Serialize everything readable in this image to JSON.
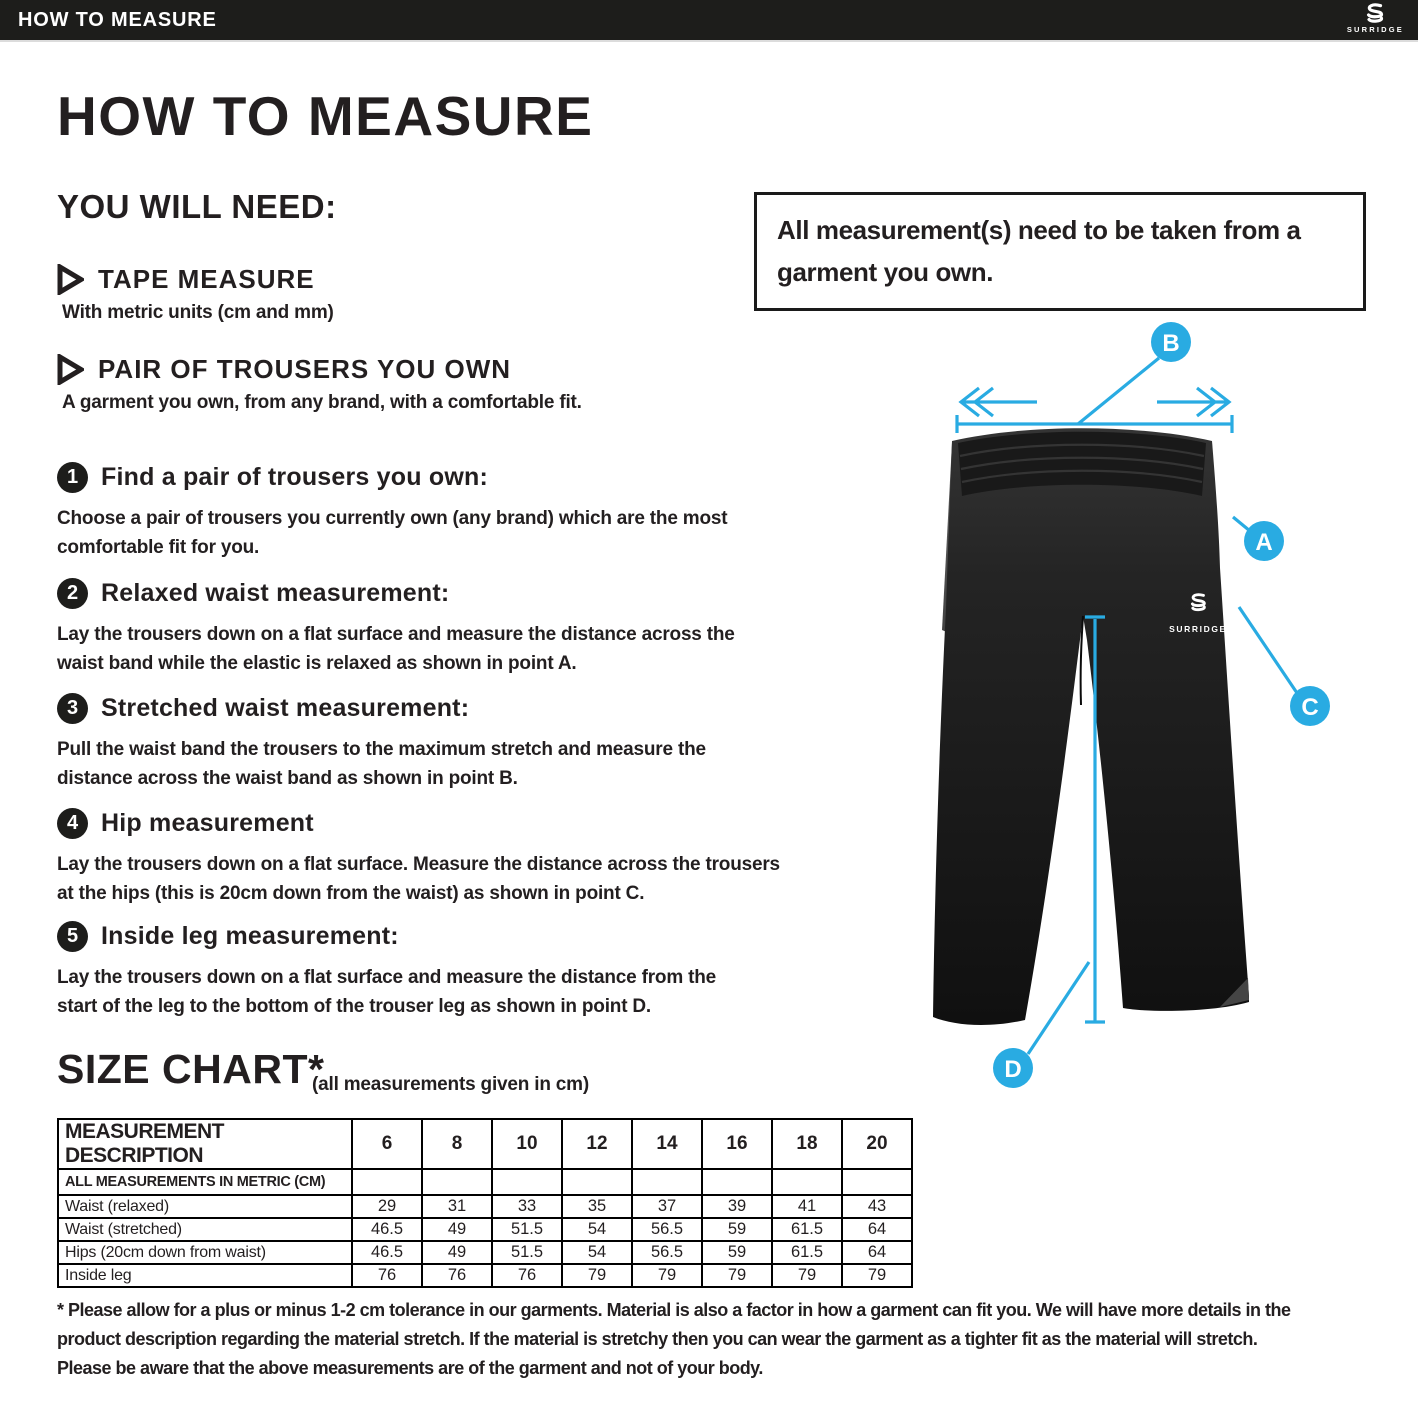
{
  "colors": {
    "accent_blue": "#29ABE2",
    "bar_background": "#1d1d1b",
    "ink": "#231f20"
  },
  "top_bar": {
    "title": "HOW TO MEASURE",
    "brand": "SURRIDGE"
  },
  "page": {
    "title": "HOW TO MEASURE",
    "you_will_need": {
      "heading": "YOU WILL NEED:",
      "items": [
        {
          "title": "TAPE MEASURE",
          "description": "With metric units (cm and mm)"
        },
        {
          "title": "PAIR OF TROUSERS YOU OWN",
          "description": "A garment you own, from any brand, with a comfortable fit."
        }
      ]
    },
    "note_box": "All measurement(s) need to be taken from a garment you own.",
    "steps": [
      {
        "number": "1",
        "title": "Find a pair of trousers you own:",
        "body": "Choose a pair of trousers you currently own (any brand) which are the most comfortable fit for you."
      },
      {
        "number": "2",
        "title": "Relaxed waist measurement:",
        "body": "Lay the trousers down on a flat surface and measure the distance across the waist band while the elastic is relaxed as shown in point A."
      },
      {
        "number": "3",
        "title": "Stretched waist measurement:",
        "body": "Pull the waist band the trousers to the maximum stretch and measure the distance across the waist band as shown in point B."
      },
      {
        "number": "4",
        "title": "Hip measurement",
        "body": "Lay the trousers down on a flat surface. Measure the distance across the trousers at the hips (this is 20cm down from the waist) as shown in point C."
      },
      {
        "number": "5",
        "title": "Inside leg measurement:",
        "body": "Lay the trousers down on a flat surface and measure the distance from the start of the leg to the bottom of the trouser leg as shown in point D."
      }
    ],
    "diagram": {
      "markers": {
        "a": "A",
        "b": "B",
        "c": "C",
        "d": "D"
      },
      "garment_logo": "SURRIDGE"
    },
    "size_chart": {
      "heading": "SIZE CHART*",
      "subheading": "(all measurements given in cm)",
      "table": {
        "header": [
          "MEASUREMENT DESCRIPTION",
          "6",
          "8",
          "10",
          "12",
          "14",
          "16",
          "18",
          "20"
        ],
        "unit_row": "ALL MEASUREMENTS IN METRIC (CM)",
        "rows": [
          {
            "label": "Waist (relaxed)",
            "values": [
              "29",
              "31",
              "33",
              "35",
              "37",
              "39",
              "41",
              "43"
            ]
          },
          {
            "label": "Waist (stretched)",
            "values": [
              "46.5",
              "49",
              "51.5",
              "54",
              "56.5",
              "59",
              "61.5",
              "64"
            ]
          },
          {
            "label": "Hips (20cm down from waist)",
            "values": [
              "46.5",
              "49",
              "51.5",
              "54",
              "56.5",
              "59",
              "61.5",
              "64"
            ]
          },
          {
            "label": "Inside leg",
            "values": [
              "76",
              "76",
              "76",
              "79",
              "79",
              "79",
              "79",
              "79"
            ]
          }
        ]
      }
    },
    "footnote": "* Please allow for a plus or minus 1-2 cm tolerance in our garments. Material is also a factor in how a garment can fit you. We will have more details in the product description regarding the material stretch.  If the material is stretchy then you can wear the garment as a tighter fit as the material will stretch.  Please be aware that the above measurements are of the garment and not of your body."
  }
}
